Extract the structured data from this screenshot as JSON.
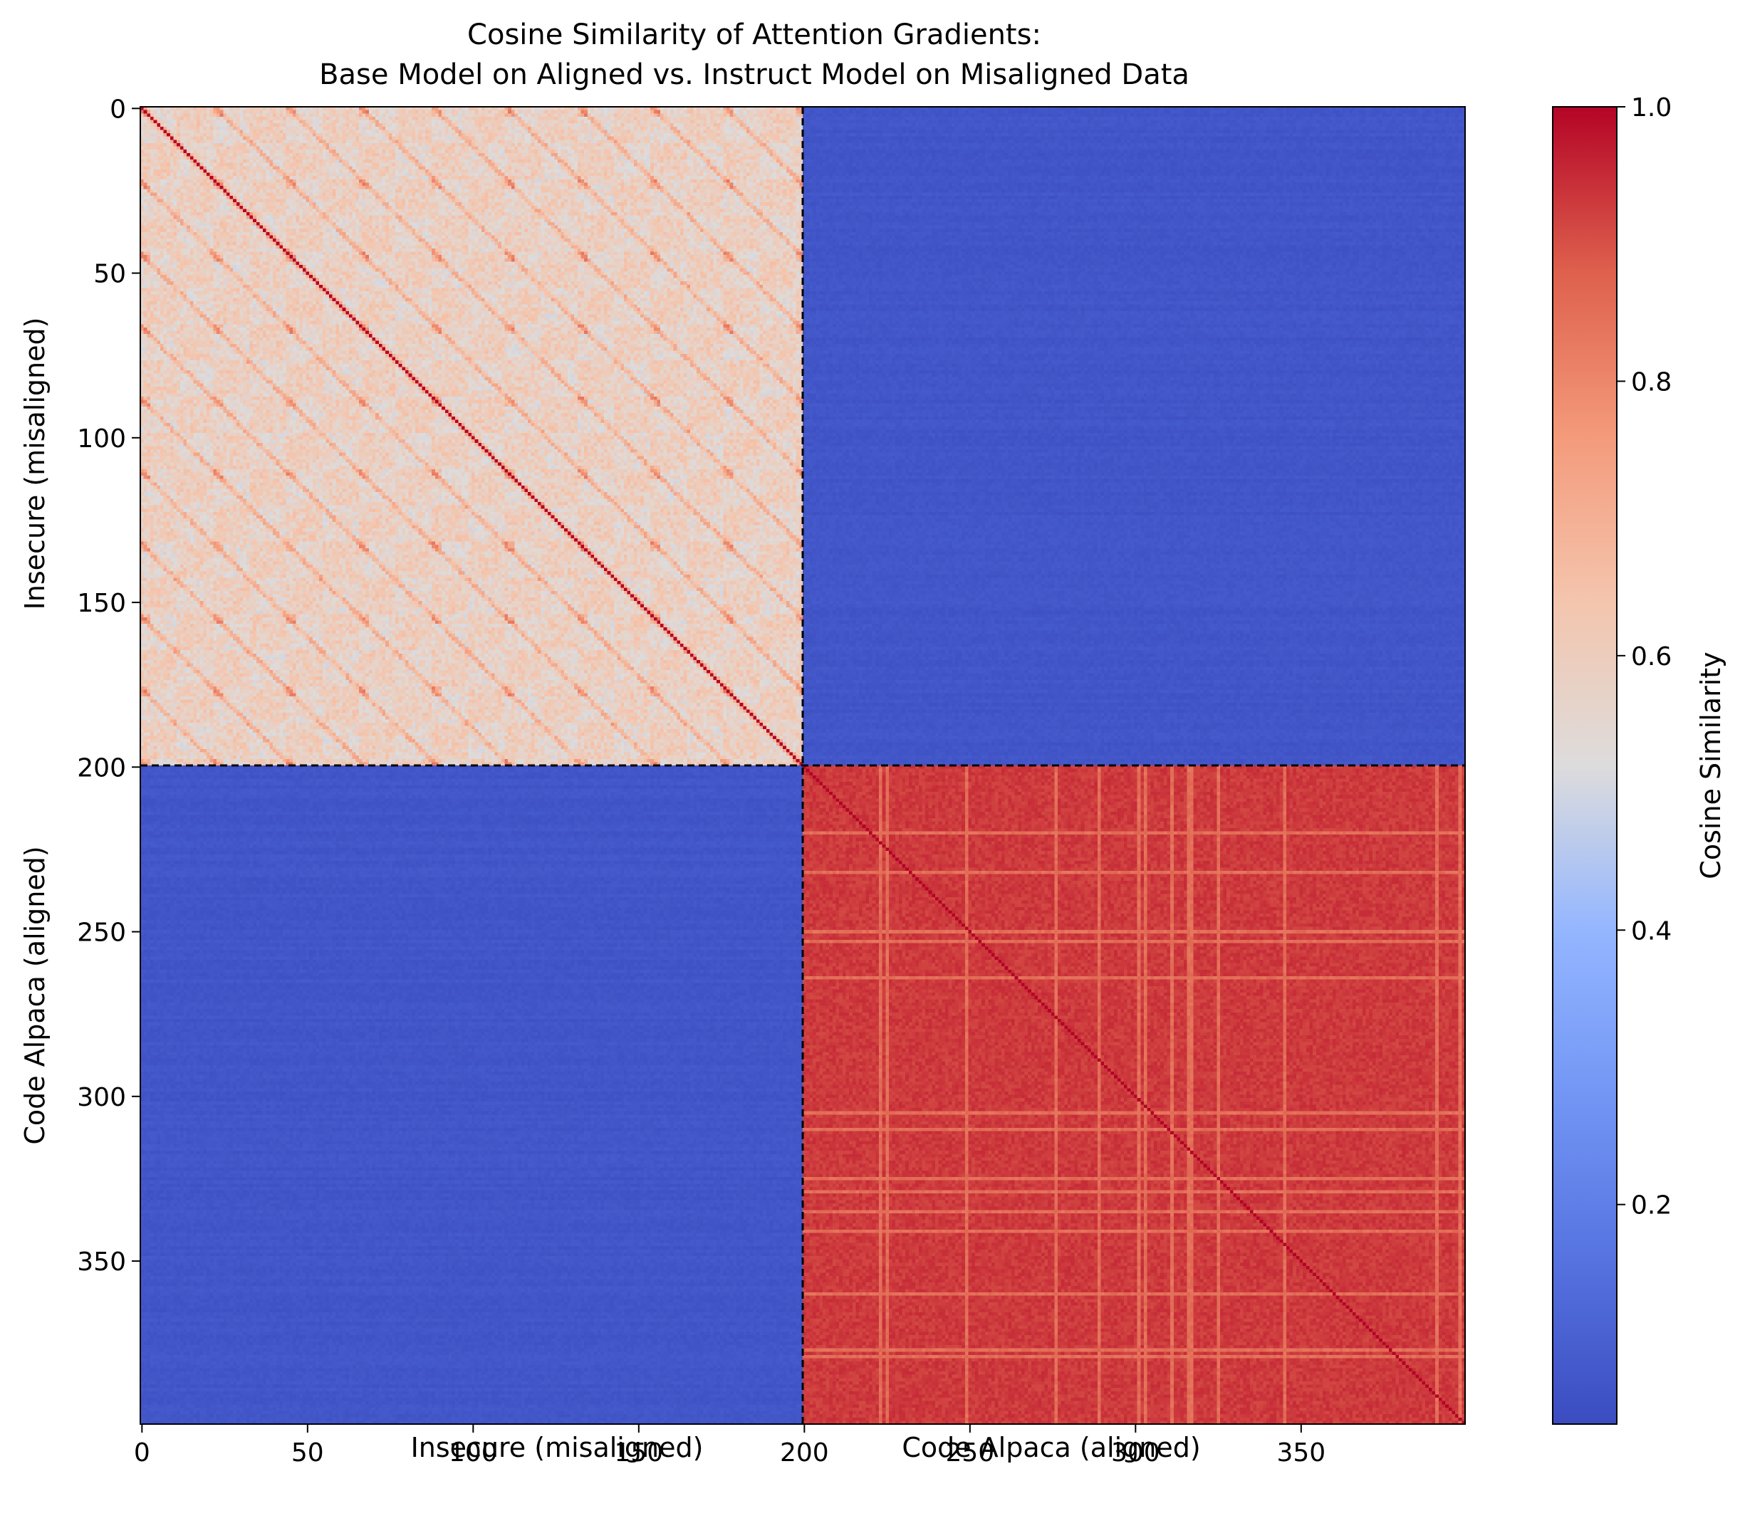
{
  "chart_data": {
    "type": "heatmap",
    "title_line1": "Cosine Similarity of Attention Gradients:",
    "title_line2": "Base Model on Aligned vs. Instruct Model on Misaligned Data",
    "xlabel_left": "Insecure (misaligned)",
    "xlabel_right": "Code Alpaca (aligned)",
    "ylabel_top": "Insecure (misaligned)",
    "ylabel_bottom": "Code Alpaca (aligned)",
    "colorbar_label": "Cosine Similarity",
    "colormap": "coolwarm",
    "matrix_size": 400,
    "x_ticks": [
      "0",
      "50",
      "100",
      "150",
      "200",
      "250",
      "300",
      "350"
    ],
    "x_tick_values": [
      0,
      50,
      100,
      150,
      200,
      250,
      300,
      350
    ],
    "y_ticks": [
      "0",
      "50",
      "100",
      "150",
      "200",
      "250",
      "300",
      "350"
    ],
    "y_tick_values": [
      0,
      50,
      100,
      150,
      200,
      250,
      300,
      350
    ],
    "colorbar_ticks": [
      "0.2",
      "0.4",
      "0.6",
      "0.8",
      "1.0"
    ],
    "colorbar_tick_values": [
      0.2,
      0.4,
      0.6,
      0.8,
      1.0
    ],
    "colorbar_range": [
      0.04,
      1.0
    ],
    "block_boundary": 200,
    "blocks": [
      {
        "rows": [
          0,
          200
        ],
        "cols": [
          0,
          200
        ],
        "mean_value": 0.6,
        "pattern": "banded diagonals with periodic stripes, diagonal = 1.0"
      },
      {
        "rows": [
          0,
          200
        ],
        "cols": [
          200,
          400
        ],
        "mean_value": 0.07
      },
      {
        "rows": [
          200,
          400
        ],
        "cols": [
          0,
          200
        ],
        "mean_value": 0.07
      },
      {
        "rows": [
          200,
          400
        ],
        "cols": [
          200,
          400
        ],
        "mean_value": 0.93,
        "pattern": "uniform high with lighter stripes, diagonal = 1.0"
      }
    ],
    "diagonal_value": 1.0
  }
}
